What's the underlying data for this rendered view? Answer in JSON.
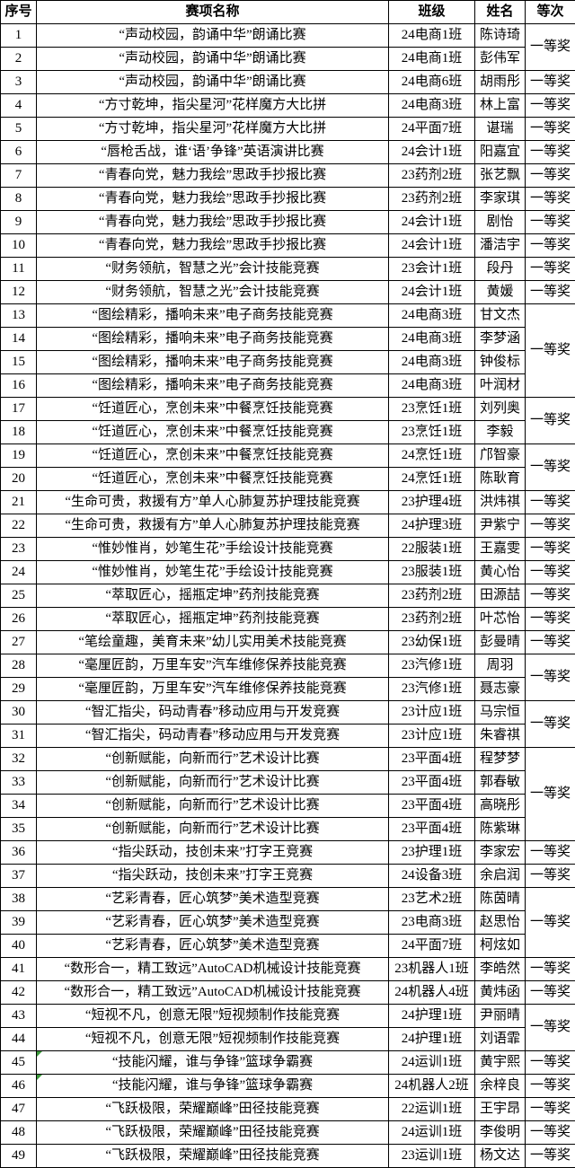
{
  "colors": {
    "border": "#000000",
    "background": "#ffffff",
    "flag_green": "#3a9a3a"
  },
  "table": {
    "headers": [
      "序号",
      "赛项名称",
      "班级",
      "姓名",
      "等次"
    ],
    "rows": [
      {
        "no": "1",
        "event": "“声动校园，韵诵中华”朗诵比赛",
        "cls": "24电商1班",
        "student": "陈诗琦",
        "award": "一等奖",
        "span": 2
      },
      {
        "no": "2",
        "event": "“声动校园，韵诵中华”朗诵比赛",
        "cls": "24电商1班",
        "student": "彭伟军"
      },
      {
        "no": "3",
        "event": "“声动校园，韵诵中华”朗诵比赛",
        "cls": "24电商6班",
        "student": "胡雨彤",
        "award": "一等奖",
        "span": 1
      },
      {
        "no": "4",
        "event": "“方寸乾坤，指尖星河”花样魔方大比拼",
        "cls": "24电商3班",
        "student": "林上富",
        "award": "一等奖",
        "span": 1
      },
      {
        "no": "5",
        "event": "“方寸乾坤，指尖星河”花样魔方大比拼",
        "cls": "24平面7班",
        "student": "谌瑞",
        "award": "一等奖",
        "span": 1
      },
      {
        "no": "6",
        "event": "“唇枪舌战，谁‘语’争锋”英语演讲比赛",
        "cls": "24会计1班",
        "student": "阳嘉宜",
        "award": "一等奖",
        "span": 1
      },
      {
        "no": "7",
        "event": "“青春向党，魅力我绘”思政手抄报比赛",
        "cls": "23药剂2班",
        "student": "张艺飘",
        "award": "一等奖",
        "span": 1
      },
      {
        "no": "8",
        "event": "“青春向党，魅力我绘”思政手抄报比赛",
        "cls": "23药剂2班",
        "student": "李家琪",
        "award": "一等奖",
        "span": 1
      },
      {
        "no": "9",
        "event": "“青春向党，魅力我绘”思政手抄报比赛",
        "cls": "24会计1班",
        "student": "剧怡",
        "award": "一等奖",
        "span": 1
      },
      {
        "no": "10",
        "event": "“青春向党，魅力我绘”思政手抄报比赛",
        "cls": "24会计1班",
        "student": "潘洁宇",
        "award": "一等奖",
        "span": 1
      },
      {
        "no": "11",
        "event": "“财务领航，智慧之光”会计技能竞赛",
        "cls": "23会计1班",
        "student": "段丹",
        "award": "一等奖",
        "span": 1
      },
      {
        "no": "12",
        "event": "“财务领航，智慧之光”会计技能竞赛",
        "cls": "24会计1班",
        "student": "黄媛",
        "award": "一等奖",
        "span": 1
      },
      {
        "no": "13",
        "event": "“图绘精彩，播响未来”电子商务技能竞赛",
        "cls": "24电商3班",
        "student": "甘文杰",
        "award": "一等奖",
        "span": 4
      },
      {
        "no": "14",
        "event": "“图绘精彩，播响未来”电子商务技能竞赛",
        "cls": "24电商3班",
        "student": "李梦涵"
      },
      {
        "no": "15",
        "event": "“图绘精彩，播响未来”电子商务技能竞赛",
        "cls": "24电商3班",
        "student": "钟俊标"
      },
      {
        "no": "16",
        "event": "“图绘精彩，播响未来”电子商务技能竞赛",
        "cls": "24电商3班",
        "student": "叶润材"
      },
      {
        "no": "17",
        "event": "“饪道匠心，烹创未来”中餐烹饪技能竞赛",
        "cls": "23烹饪1班",
        "student": "刘列奥",
        "award": "一等奖",
        "span": 2
      },
      {
        "no": "18",
        "event": "“饪道匠心，烹创未来”中餐烹饪技能竞赛",
        "cls": "23烹饪1班",
        "student": "李毅"
      },
      {
        "no": "19",
        "event": "“饪道匠心，烹创未来”中餐烹饪技能竞赛",
        "cls": "24烹饪1班",
        "student": "邝智豪",
        "award": "一等奖",
        "span": 2
      },
      {
        "no": "20",
        "event": "“饪道匠心，烹创未来”中餐烹饪技能竞赛",
        "cls": "24烹饪1班",
        "student": "陈耿育"
      },
      {
        "no": "21",
        "event": "“生命可贵，救援有方”单人心肺复苏护理技能竞赛",
        "cls": "23护理4班",
        "student": "洪炜祺",
        "award": "一等奖",
        "span": 1
      },
      {
        "no": "22",
        "event": "“生命可贵，救援有方”单人心肺复苏护理技能竞赛",
        "cls": "24护理3班",
        "student": "尹紫宁",
        "award": "一等奖",
        "span": 1
      },
      {
        "no": "23",
        "event": "“惟妙惟肖，妙笔生花”手绘设计技能竞赛",
        "cls": "22服装1班",
        "student": "王嘉雯",
        "award": "一等奖",
        "span": 1
      },
      {
        "no": "24",
        "event": "“惟妙惟肖，妙笔生花”手绘设计技能竞赛",
        "cls": "23服装1班",
        "student": "黄心怡",
        "award": "一等奖",
        "span": 1
      },
      {
        "no": "25",
        "event": "“萃取匠心，摇瓶定坤”药剂技能竞赛",
        "cls": "23药剂2班",
        "student": "田源喆",
        "award": "一等奖",
        "span": 1
      },
      {
        "no": "26",
        "event": "“萃取匠心，摇瓶定坤”药剂技能竞赛",
        "cls": "23药剂2班",
        "student": "叶芯怡",
        "award": "一等奖",
        "span": 1
      },
      {
        "no": "27",
        "event": "“笔绘童趣，美育未来”幼儿实用美术技能竞赛",
        "cls": "23幼保1班",
        "student": "彭曼晴",
        "award": "一等奖",
        "span": 1
      },
      {
        "no": "28",
        "event": "“毫厘匠韵，万里车安”汽车维修保养技能竞赛",
        "cls": "23汽修1班",
        "student": "周羽",
        "award": "一等奖",
        "span": 2
      },
      {
        "no": "29",
        "event": "“毫厘匠韵，万里车安”汽车维修保养技能竞赛",
        "cls": "23汽修1班",
        "student": "聂志豪"
      },
      {
        "no": "30",
        "event": "“智汇指尖，码动青春”移动应用与开发竞赛",
        "cls": "23计应1班",
        "student": "马宗恒",
        "award": "一等奖",
        "span": 2
      },
      {
        "no": "31",
        "event": "“智汇指尖，码动青春”移动应用与开发竞赛",
        "cls": "23计应1班",
        "student": "朱睿祺"
      },
      {
        "no": "32",
        "event": "“创新赋能，向新而行”艺术设计比赛",
        "cls": "23平面4班",
        "student": "程梦梦",
        "award": "一等奖",
        "span": 4
      },
      {
        "no": "33",
        "event": "“创新赋能，向新而行”艺术设计比赛",
        "cls": "23平面4班",
        "student": "郭春敏"
      },
      {
        "no": "34",
        "event": "“创新赋能，向新而行”艺术设计比赛",
        "cls": "23平面4班",
        "student": "高晓彤"
      },
      {
        "no": "35",
        "event": "“创新赋能，向新而行”艺术设计比赛",
        "cls": "23平面4班",
        "student": "陈紫琳"
      },
      {
        "no": "36",
        "event": "“指尖跃动，技创未来”打字王竞赛",
        "cls": "23护理1班",
        "student": "李家宏",
        "award": "一等奖",
        "span": 1
      },
      {
        "no": "37",
        "event": "“指尖跃动，技创未来”打字王竞赛",
        "cls": "24设备3班",
        "student": "余启润",
        "award": "一等奖",
        "span": 1
      },
      {
        "no": "38",
        "event": "“艺彩青春，匠心筑梦”美术造型竞赛",
        "cls": "23艺术2班",
        "student": "陈茵晴",
        "award": "一等奖",
        "span": 3
      },
      {
        "no": "39",
        "event": "“艺彩青春，匠心筑梦”美术造型竞赛",
        "cls": "23电商3班",
        "student": "赵思怡"
      },
      {
        "no": "40",
        "event": "“艺彩青春，匠心筑梦”美术造型竞赛",
        "cls": "24平面7班",
        "student": "柯炫如"
      },
      {
        "no": "41",
        "event": "“数形合一，精工致远”AutoCAD机械设计技能竞赛",
        "cls": "23机器人1班",
        "student": "李皓然",
        "award": "一等奖",
        "span": 1
      },
      {
        "no": "42",
        "event": "“数形合一，精工致远”AutoCAD机械设计技能竞赛",
        "cls": "24机器人4班",
        "student": "黄炜函",
        "award": "一等奖",
        "span": 1
      },
      {
        "no": "43",
        "event": "“短视不凡，创意无限”短视频制作技能竞赛",
        "cls": "24护理1班",
        "student": "尹丽晴",
        "award": "一等奖",
        "span": 2
      },
      {
        "no": "44",
        "event": "“短视不凡，创意无限”短视频制作技能竞赛",
        "cls": "24护理1班",
        "student": "刘语霏"
      },
      {
        "no": "45",
        "event": "“技能闪耀，谁与争锋”篮球争霸赛",
        "cls": "24运训1班",
        "student": "黄宇熙",
        "award": "一等奖",
        "span": 1,
        "flag": true
      },
      {
        "no": "46",
        "event": "“技能闪耀，谁与争锋”篮球争霸赛",
        "cls": "24机器人2班",
        "student": "余梓良",
        "award": "一等奖",
        "span": 1,
        "flag": true
      },
      {
        "no": "47",
        "event": "“飞跃极限，荣耀巅峰”田径技能竞赛",
        "cls": "22运训1班",
        "student": "王宇昂",
        "award": "一等奖",
        "span": 1
      },
      {
        "no": "48",
        "event": "“飞跃极限，荣耀巅峰”田径技能竞赛",
        "cls": "24运训1班",
        "student": "李俊明",
        "award": "一等奖",
        "span": 1
      },
      {
        "no": "49",
        "event": "“飞跃极限，荣耀巅峰”田径技能竞赛",
        "cls": "23运训1班",
        "student": "杨文达",
        "award": "一等奖",
        "span": 1
      }
    ]
  }
}
